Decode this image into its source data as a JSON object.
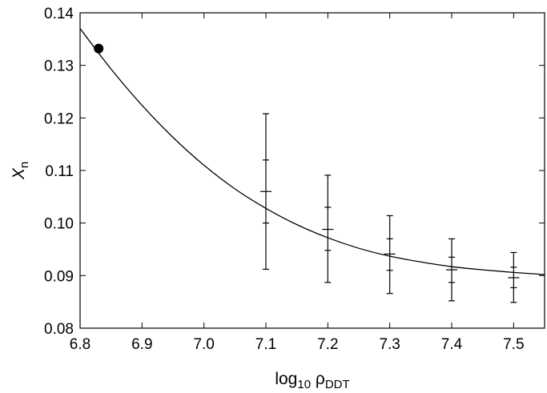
{
  "chart_data": {
    "type": "line",
    "xlabel": {
      "base": "log",
      "sub": "10",
      "rho": " ρ",
      "rho_sub": "DDT"
    },
    "ylabel": {
      "base": "X",
      "sub": "n"
    },
    "xlim": [
      6.8,
      7.55
    ],
    "ylim": [
      0.08,
      0.14
    ],
    "xticks": [
      "6.8",
      "6.9",
      "7.0",
      "7.1",
      "7.2",
      "7.3",
      "7.4",
      "7.5"
    ],
    "yticks": [
      "0.08",
      "0.09",
      "0.10",
      "0.11",
      "0.12",
      "0.13",
      "0.14"
    ],
    "grid": false,
    "series": [
      {
        "kind": "fit-curve",
        "x": [
          6.8,
          6.85,
          6.9,
          6.95,
          7.0,
          7.05,
          7.1,
          7.15,
          7.2,
          7.25,
          7.3,
          7.35,
          7.4,
          7.45,
          7.5,
          7.55
        ],
        "y": [
          0.137,
          0.1293,
          0.1224,
          0.1163,
          0.111,
          0.1065,
          0.1028,
          0.0997,
          0.0972,
          0.0952,
          0.0937,
          0.0926,
          0.0917,
          0.0911,
          0.0906,
          0.0902
        ]
      },
      {
        "kind": "errorbars",
        "points": [
          {
            "x": 7.1,
            "y": 0.106,
            "inner": [
              0.1,
              0.112
            ],
            "outer": [
              0.0912,
              0.1208
            ]
          },
          {
            "x": 7.2,
            "y": 0.0988,
            "inner": [
              0.0948,
              0.103
            ],
            "outer": [
              0.0887,
              0.1091
            ]
          },
          {
            "x": 7.3,
            "y": 0.0941,
            "inner": [
              0.091,
              0.097
            ],
            "outer": [
              0.0866,
              0.1014
            ]
          },
          {
            "x": 7.4,
            "y": 0.0911,
            "inner": [
              0.0887,
              0.0935
            ],
            "outer": [
              0.0852,
              0.097
            ]
          },
          {
            "x": 7.5,
            "y": 0.0896,
            "inner": [
              0.0877,
              0.0916
            ],
            "outer": [
              0.0849,
              0.0944
            ]
          }
        ]
      },
      {
        "kind": "marker",
        "x": 6.83,
        "y": 0.1332
      }
    ]
  }
}
